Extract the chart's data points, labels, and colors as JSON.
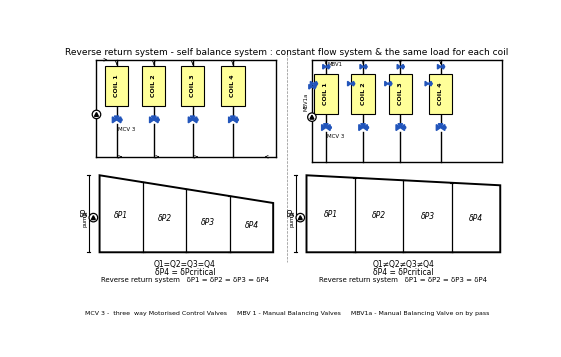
{
  "title": "Reverse return system - self balance system : constant flow system & the same load for each coil",
  "title_fontsize": 6.5,
  "bg_color": "#ffffff",
  "coil_fill": "#ffff99",
  "coil_border": "#000000",
  "valve_color": "#2255bb",
  "pipe_color": "#000000",
  "left_diagram": {
    "coils": [
      "COIL 1",
      "COIL 2",
      "COIL 3",
      "COIL 4"
    ],
    "label_mcv": "MCV 3",
    "eq1": "Q1=Q2=Q3=Q4",
    "eq2": "δP4 = δPcritical",
    "eq3": "Reverse return system   δP1 = δP2 = δP3 = δP4",
    "dp_labels": [
      "δP1",
      "δP2",
      "δP3",
      "δP4"
    ]
  },
  "right_diagram": {
    "coils": [
      "COIL 1",
      "COIL 2",
      "COIL 3",
      "COIL 4"
    ],
    "label_mbv1": "MBV1",
    "label_mbv1a": "MBV1a",
    "label_mcv": "MCV 3",
    "eq1": "Q1≠Q2≠Q3≠Q4",
    "eq2": "δP4 = δPcritical",
    "eq3": "Reverse return system   δP1 = δP2 = δP3 = δP4",
    "dp_labels": [
      "δP1",
      "δP2",
      "δP3",
      "δP4"
    ]
  },
  "footer": "MCV 3 -  three  way Motorised Control Valves     MBV 1 - Manual Balancing Valves     MBV1a - Manual Balancing Valve on by pass"
}
